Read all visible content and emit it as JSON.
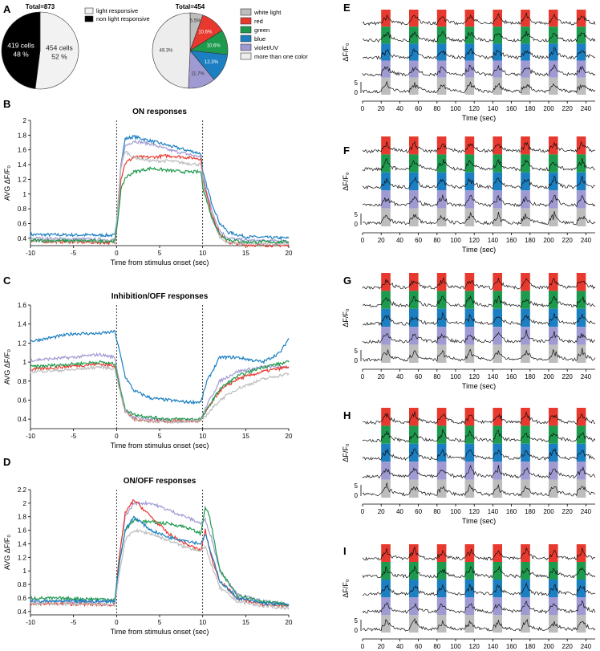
{
  "panels": {
    "A": {
      "letter": "A"
    },
    "B": {
      "letter": "B"
    },
    "C": {
      "letter": "C"
    },
    "D": {
      "letter": "D"
    },
    "E": {
      "letter": "E"
    },
    "F": {
      "letter": "F"
    },
    "G": {
      "letter": "G"
    },
    "H": {
      "letter": "H"
    },
    "I": {
      "letter": "I"
    }
  },
  "colors": {
    "white_light": "#bdbdbd",
    "red": "#e8392f",
    "green": "#1e9a4e",
    "blue": "#1c7fc1",
    "violet": "#a09ad3",
    "more_than_one": "#ededed"
  },
  "chart_data": [
    {
      "id": "A-pie-1",
      "type": "pie",
      "title": "Total=873",
      "slices": [
        {
          "name": "light responsive",
          "label_line1": "454 cells",
          "label_line2": "52 %",
          "value": 454,
          "color": "#f2f2f2"
        },
        {
          "name": "non light responsive",
          "label_line1": "419 cells",
          "label_line2": "48 %",
          "value": 419,
          "color": "#000000"
        }
      ]
    },
    {
      "id": "A-pie-2",
      "type": "pie",
      "title": "Total=454",
      "slices": [
        {
          "name": "white light",
          "label": "5.5%",
          "value": 5.5,
          "color": "#bdbdbd"
        },
        {
          "name": "red",
          "label": "10.6%",
          "value": 10.6,
          "color": "#e8392f"
        },
        {
          "name": "green",
          "label": "10.6%",
          "value": 10.6,
          "color": "#1e9a4e"
        },
        {
          "name": "blue",
          "label": "12.3%",
          "value": 12.3,
          "color": "#1c7fc1"
        },
        {
          "name": "violet/UV",
          "label": "11.7%",
          "value": 11.7,
          "color": "#a09ad3"
        },
        {
          "name": "more than one color",
          "label": "49.3%",
          "value": 49.3,
          "color": "#ededed"
        }
      ]
    },
    {
      "id": "B-line",
      "type": "line",
      "title": "ON responses",
      "xlabel": "Time from stimulus onset (sec)",
      "ylabel": "AVG ΔF/F₀",
      "xlim": [
        -10,
        20
      ],
      "ylim": [
        0.3,
        2.0
      ],
      "xticks": [
        "-10",
        "-5",
        "0",
        "5",
        "10",
        "15",
        "20"
      ],
      "yticks": [
        "0.4",
        "0.6",
        "0.8",
        "1",
        "1.2",
        "1.4",
        "1.6",
        "1.8",
        "2"
      ],
      "stimulus_lines": [
        0,
        10
      ],
      "series": [
        {
          "color": "#1c7fc1",
          "x": [
            -10,
            -0.2,
            0,
            0.5,
            1,
            2,
            4,
            6,
            8,
            9.8,
            10,
            11,
            12,
            13,
            15,
            20
          ],
          "values": [
            0.45,
            0.44,
            0.6,
            1.4,
            1.75,
            1.78,
            1.72,
            1.66,
            1.6,
            1.55,
            1.3,
            0.9,
            0.6,
            0.48,
            0.42,
            0.4
          ]
        },
        {
          "color": "#a09ad3",
          "x": [
            -10,
            -0.2,
            0,
            0.5,
            1,
            2,
            4,
            6,
            8,
            9.8,
            10,
            11,
            12,
            13,
            15,
            20
          ],
          "values": [
            0.4,
            0.38,
            0.6,
            1.4,
            1.65,
            1.72,
            1.68,
            1.6,
            1.55,
            1.5,
            1.25,
            0.8,
            0.5,
            0.4,
            0.37,
            0.36
          ]
        },
        {
          "color": "#e8392f",
          "x": [
            -10,
            -0.2,
            0,
            0.5,
            1,
            2,
            4,
            6,
            8,
            9.8,
            10,
            11,
            12,
            13,
            15,
            20
          ],
          "values": [
            0.36,
            0.34,
            0.5,
            1.2,
            1.42,
            1.5,
            1.5,
            1.52,
            1.5,
            1.48,
            1.2,
            0.75,
            0.45,
            0.34,
            0.31,
            0.3
          ]
        },
        {
          "color": "#bdbdbd",
          "x": [
            -10,
            -0.2,
            0,
            0.5,
            1,
            2,
            4,
            6,
            8,
            9.8,
            10,
            11,
            12,
            13,
            15,
            20
          ],
          "values": [
            0.38,
            0.36,
            0.55,
            1.35,
            1.58,
            1.5,
            1.45,
            1.45,
            1.42,
            1.4,
            1.15,
            0.7,
            0.4,
            0.34,
            0.33,
            0.32
          ]
        },
        {
          "color": "#1e9a4e",
          "x": [
            -10,
            -0.2,
            0,
            0.5,
            1,
            2,
            4,
            6,
            8,
            9.8,
            10,
            11,
            12,
            13,
            15,
            20
          ],
          "values": [
            0.37,
            0.36,
            0.5,
            1.05,
            1.22,
            1.3,
            1.35,
            1.32,
            1.3,
            1.3,
            1.1,
            0.7,
            0.45,
            0.38,
            0.35,
            0.35
          ]
        }
      ]
    },
    {
      "id": "C-line",
      "type": "line",
      "title": "Inhibition/OFF responses",
      "xlabel": "Time from stimulus onset (sec)",
      "ylabel": "AVG ΔF/F₀",
      "xlim": [
        -10,
        20
      ],
      "ylim": [
        0.3,
        1.6
      ],
      "xticks": [
        "-10",
        "-5",
        "0",
        "5",
        "10",
        "15",
        "20"
      ],
      "yticks": [
        "0.4",
        "0.6",
        "0.8",
        "1",
        "1.2",
        "1.4",
        "1.6"
      ],
      "stimulus_lines": [
        0,
        10
      ],
      "series": [
        {
          "color": "#1c7fc1",
          "x": [
            -10,
            -8,
            -5,
            -2,
            -0.2,
            0.5,
            1,
            2,
            4,
            6,
            8,
            9.8,
            10.5,
            12,
            14,
            17,
            19,
            20
          ],
          "values": [
            1.22,
            1.25,
            1.3,
            1.3,
            1.32,
            1.05,
            0.85,
            0.7,
            0.62,
            0.6,
            0.58,
            0.58,
            0.8,
            1.05,
            1.05,
            1.0,
            1.1,
            1.25
          ]
        },
        {
          "color": "#a09ad3",
          "x": [
            -10,
            -5,
            -2,
            -0.2,
            0.5,
            1,
            2,
            4,
            6,
            8,
            9.8,
            10.5,
            12,
            14,
            17,
            20
          ],
          "values": [
            1.02,
            1.05,
            1.08,
            1.05,
            0.7,
            0.5,
            0.42,
            0.4,
            0.38,
            0.38,
            0.4,
            0.55,
            0.8,
            0.9,
            0.95,
            0.95
          ]
        },
        {
          "color": "#e8392f",
          "x": [
            -10,
            -5,
            -2,
            -0.2,
            0.5,
            1,
            2,
            4,
            6,
            8,
            9.8,
            10.5,
            12,
            14,
            17,
            20
          ],
          "values": [
            0.92,
            0.96,
            0.98,
            0.96,
            0.65,
            0.48,
            0.4,
            0.38,
            0.38,
            0.38,
            0.38,
            0.5,
            0.7,
            0.82,
            0.9,
            0.95
          ]
        },
        {
          "color": "#1e9a4e",
          "x": [
            -10,
            -5,
            -2,
            -0.2,
            0.5,
            1,
            2,
            4,
            6,
            8,
            9.8,
            10.5,
            12,
            14,
            17,
            20
          ],
          "values": [
            0.95,
            0.98,
            1.0,
            0.98,
            0.7,
            0.5,
            0.45,
            0.42,
            0.4,
            0.4,
            0.4,
            0.5,
            0.72,
            0.85,
            0.95,
            1.0
          ]
        },
        {
          "color": "#bdbdbd",
          "x": [
            -10,
            -5,
            -2,
            -0.2,
            0.5,
            1,
            2,
            4,
            6,
            8,
            9.8,
            10.5,
            12,
            14,
            17,
            20
          ],
          "values": [
            0.9,
            0.92,
            0.95,
            0.93,
            0.65,
            0.48,
            0.4,
            0.38,
            0.37,
            0.38,
            0.38,
            0.45,
            0.6,
            0.72,
            0.82,
            0.88
          ]
        }
      ]
    },
    {
      "id": "D-line",
      "type": "line",
      "title": "ON/OFF responses",
      "xlabel": "Time from stimulus onset (sec)",
      "ylabel": "AVG ΔF/F₀",
      "xlim": [
        -10,
        20
      ],
      "ylim": [
        0.35,
        2.2
      ],
      "xticks": [
        "-10",
        "-5",
        "0",
        "5",
        "10",
        "15",
        "20"
      ],
      "yticks": [
        "0.4",
        "0.6",
        "0.8",
        "1",
        "1.2",
        "1.4",
        "1.6",
        "1.8",
        "2",
        "2.2"
      ],
      "stimulus_lines": [
        0,
        10
      ],
      "series": [
        {
          "color": "#a09ad3",
          "x": [
            -10,
            -0.2,
            0.3,
            1,
            2,
            4,
            6,
            8,
            9.8,
            10.3,
            11,
            12,
            14,
            17,
            20
          ],
          "values": [
            0.55,
            0.55,
            1.2,
            1.8,
            2.0,
            2.0,
            1.9,
            1.8,
            1.7,
            1.75,
            1.5,
            1.0,
            0.65,
            0.55,
            0.5
          ]
        },
        {
          "color": "#e8392f",
          "x": [
            -10,
            -0.2,
            0.3,
            1,
            2,
            4,
            6,
            8,
            9.8,
            10.3,
            11,
            12,
            14,
            17,
            20
          ],
          "values": [
            0.52,
            0.5,
            1.2,
            1.85,
            2.05,
            1.8,
            1.55,
            1.4,
            1.3,
            1.6,
            1.2,
            0.85,
            0.6,
            0.5,
            0.48
          ]
        },
        {
          "color": "#1e9a4e",
          "x": [
            -10,
            -0.2,
            0.3,
            1,
            2,
            4,
            6,
            8,
            9.8,
            10.3,
            10.8,
            12,
            14,
            17,
            20
          ],
          "values": [
            0.6,
            0.58,
            1.1,
            1.6,
            1.75,
            1.72,
            1.7,
            1.65,
            1.55,
            1.95,
            1.8,
            1.0,
            0.65,
            0.55,
            0.5
          ]
        },
        {
          "color": "#1c7fc1",
          "x": [
            -10,
            -0.2,
            0.3,
            1,
            2,
            4,
            6,
            8,
            9.8,
            10.3,
            11,
            12,
            14,
            17,
            20
          ],
          "values": [
            0.55,
            0.55,
            1.1,
            1.6,
            1.8,
            1.6,
            1.5,
            1.45,
            1.4,
            1.55,
            1.25,
            0.85,
            0.6,
            0.52,
            0.5
          ]
        },
        {
          "color": "#bdbdbd",
          "x": [
            -10,
            -0.2,
            0.3,
            1,
            2,
            4,
            6,
            8,
            9.8,
            10.3,
            11,
            12,
            14,
            17,
            20
          ],
          "values": [
            0.52,
            0.5,
            0.95,
            1.45,
            1.6,
            1.55,
            1.45,
            1.35,
            1.3,
            1.35,
            1.1,
            0.75,
            0.55,
            0.48,
            0.45
          ]
        }
      ]
    },
    {
      "id": "E-F-G-H-I-traces",
      "type": "line",
      "xlabel": "Time (sec)",
      "ylabel": "ΔF/F₀",
      "xlim": [
        0,
        250
      ],
      "xticks": [
        "0",
        "20",
        "40",
        "60",
        "80",
        "100",
        "120",
        "140",
        "160",
        "180",
        "200",
        "220",
        "240"
      ],
      "scale_labels": [
        "5",
        "0"
      ],
      "stimulus_onsets": [
        20,
        50,
        80,
        110,
        140,
        170,
        200,
        230
      ],
      "stimulus_duration": 10,
      "stimulus_order": [
        "red",
        "green",
        "blue",
        "violet/UV",
        "white light"
      ],
      "panels": [
        "E",
        "F",
        "G",
        "H",
        "I"
      ]
    }
  ]
}
